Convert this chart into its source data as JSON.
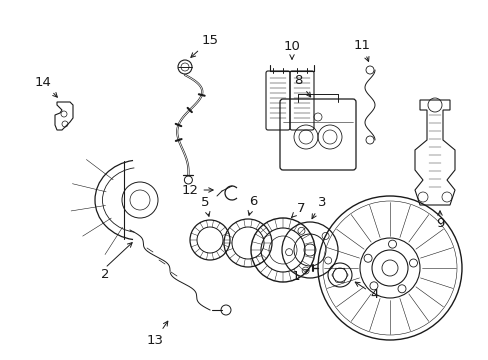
{
  "bg_color": "#ffffff",
  "line_color": "#1a1a1a",
  "fig_width": 4.89,
  "fig_height": 3.6,
  "dpi": 100,
  "label_fontsize": 9.5,
  "lw": 0.7
}
